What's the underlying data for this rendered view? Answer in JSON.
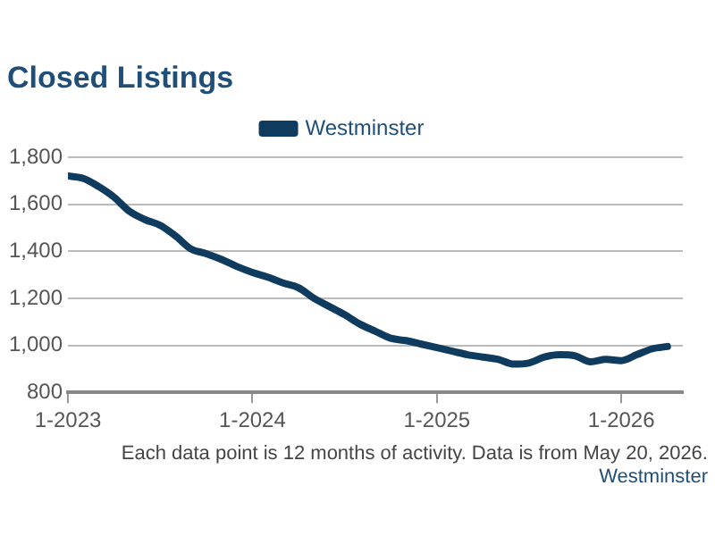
{
  "chart_data": {
    "type": "line",
    "title": "Closed Listings",
    "x": [
      "2023-01",
      "2023-02",
      "2023-03",
      "2023-04",
      "2023-05",
      "2023-06",
      "2023-07",
      "2023-08",
      "2023-09",
      "2023-10",
      "2023-11",
      "2023-12",
      "2024-01",
      "2024-02",
      "2024-03",
      "2024-04",
      "2024-05",
      "2024-06",
      "2024-07",
      "2024-08",
      "2024-09",
      "2024-10",
      "2024-11",
      "2024-12",
      "2025-01",
      "2025-02",
      "2025-03",
      "2025-04",
      "2025-05",
      "2025-06",
      "2025-07",
      "2025-08",
      "2025-09",
      "2025-10",
      "2025-11",
      "2025-12",
      "2026-01",
      "2026-02",
      "2026-03",
      "2026-04"
    ],
    "series": [
      {
        "name": "Westminster",
        "color": "#0f3b5f",
        "values": [
          1720,
          1710,
          1675,
          1630,
          1570,
          1535,
          1510,
          1465,
          1410,
          1390,
          1365,
          1335,
          1310,
          1290,
          1265,
          1245,
          1200,
          1165,
          1130,
          1090,
          1060,
          1030,
          1020,
          1005,
          990,
          975,
          960,
          950,
          940,
          920,
          925,
          950,
          960,
          955,
          930,
          940,
          935,
          960,
          985,
          995
        ]
      }
    ],
    "xlim": [
      "2023-01",
      "2026-05"
    ],
    "xticks": [
      {
        "value": "2023-01",
        "label": "1-2023"
      },
      {
        "value": "2024-01",
        "label": "1-2024"
      },
      {
        "value": "2025-01",
        "label": "1-2025"
      },
      {
        "value": "2026-01",
        "label": "1-2026"
      }
    ],
    "ylim": [
      800,
      1800
    ],
    "yticks": [
      {
        "value": 800,
        "label": "800"
      },
      {
        "value": 1000,
        "label": "1,000"
      },
      {
        "value": 1200,
        "label": "1,200"
      },
      {
        "value": 1400,
        "label": "1,400"
      },
      {
        "value": 1600,
        "label": "1,600"
      },
      {
        "value": 1800,
        "label": "1,800"
      }
    ],
    "grid": "y",
    "legend": "top",
    "marker": "none",
    "line_style": "solid",
    "annotations": [
      "Each data point is 12 months of activity. Data is from May 20, 2026.",
      "Westminster"
    ]
  }
}
